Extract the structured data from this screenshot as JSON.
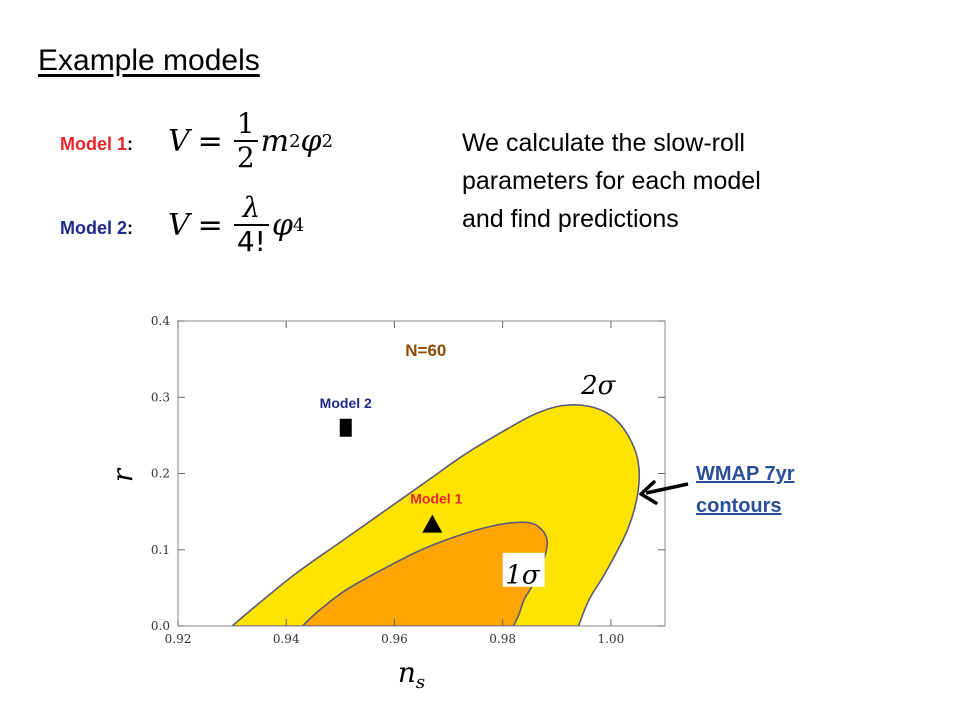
{
  "slide": {
    "title": "Example models",
    "model1": {
      "name": "Model 1",
      "colon": ":",
      "color": "#e8262a"
    },
    "model2": {
      "name": "Model 2",
      "colon": ":",
      "color": "#1f2a8c"
    },
    "formula1": {
      "lhs": "V",
      "eq": "=",
      "num": "1",
      "den": "2",
      "tail": "m",
      "sup1": "2",
      "phi": "φ",
      "sup2": "2"
    },
    "formula2": {
      "lhs": "V",
      "eq": "=",
      "num": "λ",
      "den": "4!",
      "phi": "φ",
      "sup2": "4"
    },
    "description": [
      "We calculate the slow-roll",
      "parameters for each model",
      "and find predictions"
    ],
    "annotation_lines": [
      "WMAP  7yr",
      "contours"
    ],
    "annotation_color": "#2a4f9a"
  },
  "chart_data": {
    "type": "scatter",
    "title": "N=60",
    "xlabel": "n",
    "xlabel_sub": "s",
    "ylabel": "r",
    "xlim": [
      0.92,
      1.01
    ],
    "ylim": [
      0.0,
      0.4
    ],
    "xticks": [
      "0.92",
      "0.94",
      "0.96",
      "0.98",
      "1.00"
    ],
    "yticks": [
      "0.0",
      "0.1",
      "0.2",
      "0.3",
      "0.4"
    ],
    "xtick_values": [
      0.92,
      0.94,
      0.96,
      0.98,
      1.0
    ],
    "ytick_values": [
      0.0,
      0.1,
      0.2,
      0.3,
      0.4
    ],
    "regions": [
      {
        "name": "2σ",
        "color": "#ffe400",
        "outline": [
          [
            0.93,
            0.0
          ],
          [
            0.935,
            0.03
          ],
          [
            0.942,
            0.07
          ],
          [
            0.95,
            0.11
          ],
          [
            0.958,
            0.15
          ],
          [
            0.966,
            0.19
          ],
          [
            0.973,
            0.225
          ],
          [
            0.98,
            0.255
          ],
          [
            0.986,
            0.278
          ],
          [
            0.991,
            0.289
          ],
          [
            0.996,
            0.288
          ],
          [
            1.0,
            0.276
          ],
          [
            1.003,
            0.252
          ],
          [
            1.005,
            0.217
          ],
          [
            1.005,
            0.175
          ],
          [
            1.003,
            0.125
          ],
          [
            0.999,
            0.07
          ],
          [
            0.996,
            0.035
          ],
          [
            0.994,
            0.0
          ]
        ]
      },
      {
        "name": "1σ",
        "color": "#ffa500",
        "outline": [
          [
            0.943,
            0.0
          ],
          [
            0.946,
            0.02
          ],
          [
            0.951,
            0.047
          ],
          [
            0.958,
            0.075
          ],
          [
            0.965,
            0.1
          ],
          [
            0.972,
            0.119
          ],
          [
            0.978,
            0.131
          ],
          [
            0.983,
            0.136
          ],
          [
            0.986,
            0.133
          ],
          [
            0.988,
            0.118
          ],
          [
            0.988,
            0.097
          ],
          [
            0.986,
            0.06
          ],
          [
            0.984,
            0.035
          ],
          [
            0.983,
            0.015
          ],
          [
            0.982,
            0.0
          ]
        ]
      }
    ],
    "points": [
      {
        "label": "Model 2",
        "x": 0.951,
        "y": 0.26,
        "marker": "square",
        "label_color": "#1f2a8c"
      },
      {
        "label": "Model 1",
        "x": 0.967,
        "y": 0.133,
        "marker": "triangle",
        "label_color": "#e8262a"
      }
    ],
    "grid": false,
    "legend": "none"
  }
}
